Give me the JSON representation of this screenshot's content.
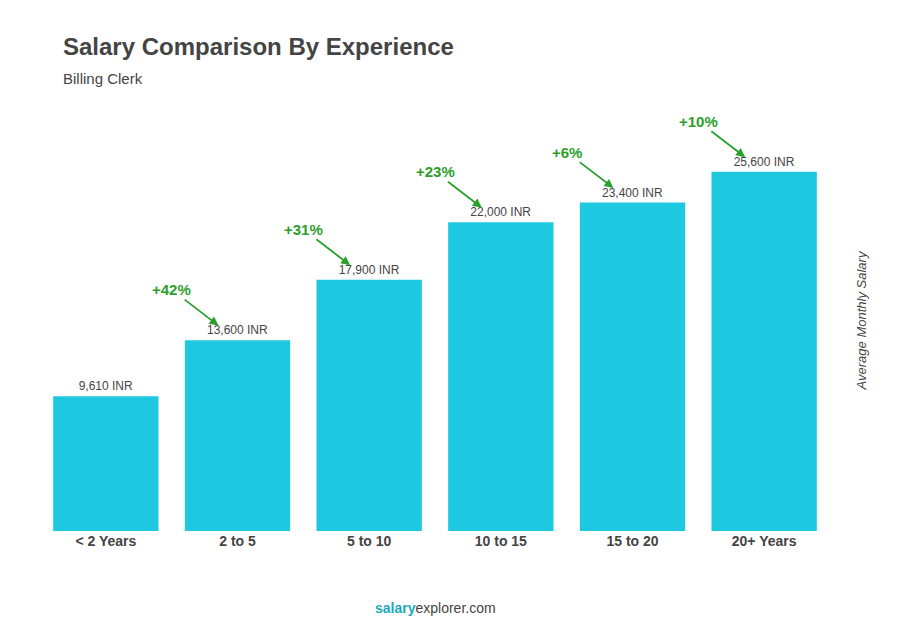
{
  "chart_data": {
    "type": "bar",
    "title": "Salary Comparison By Experience",
    "subtitle": "Billing Clerk",
    "ylabel": "Average Monthly Salary",
    "footer": [
      "salary",
      "explorer.com"
    ],
    "categories": [
      "< 2 Years",
      "2 to 5",
      "5 to 10",
      "10 to 15",
      "15 to 20",
      "20+ Years"
    ],
    "values": [
      9610,
      13600,
      17900,
      22000,
      23400,
      25600
    ],
    "value_labels": [
      "9,610 INR",
      "13,600 INR",
      "17,900 INR",
      "22,000 INR",
      "23,400 INR",
      "25,600 INR"
    ],
    "data_labels": true,
    "annotations": [
      "+42%",
      "+31%",
      "+23%",
      "+6%",
      "+10%"
    ],
    "color": "#1ec8e0",
    "ylim": [
      0,
      30000
    ],
    "yticks": [],
    "tick_labels": "x",
    "grid": false
  }
}
